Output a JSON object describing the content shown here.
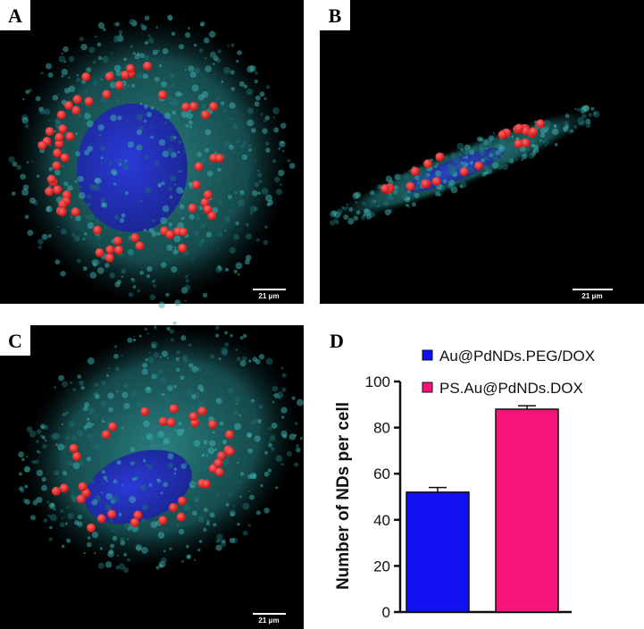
{
  "panels": [
    {
      "label": "A",
      "scale_bar": "21 μm"
    },
    {
      "label": "B",
      "scale_bar": "21 μm"
    },
    {
      "label": "C",
      "scale_bar": "21 μm"
    },
    {
      "label": "D"
    }
  ],
  "chart_data": {
    "type": "bar",
    "y_label": "Number of NDs per cell",
    "categories": [
      null
    ],
    "series": [
      {
        "name": "Au@PdNDs.PEG/DOX",
        "color": "#1010f0",
        "values": [
          52
        ],
        "errors": [
          2
        ]
      },
      {
        "name": "PS.Au@PdNDs.DOX",
        "color": "#f7157a",
        "values": [
          88
        ],
        "errors": [
          1.5
        ]
      }
    ],
    "ylim": [
      0,
      100
    ],
    "yticks": [
      0,
      20,
      40,
      60,
      80,
      100
    ],
    "grid": false
  }
}
